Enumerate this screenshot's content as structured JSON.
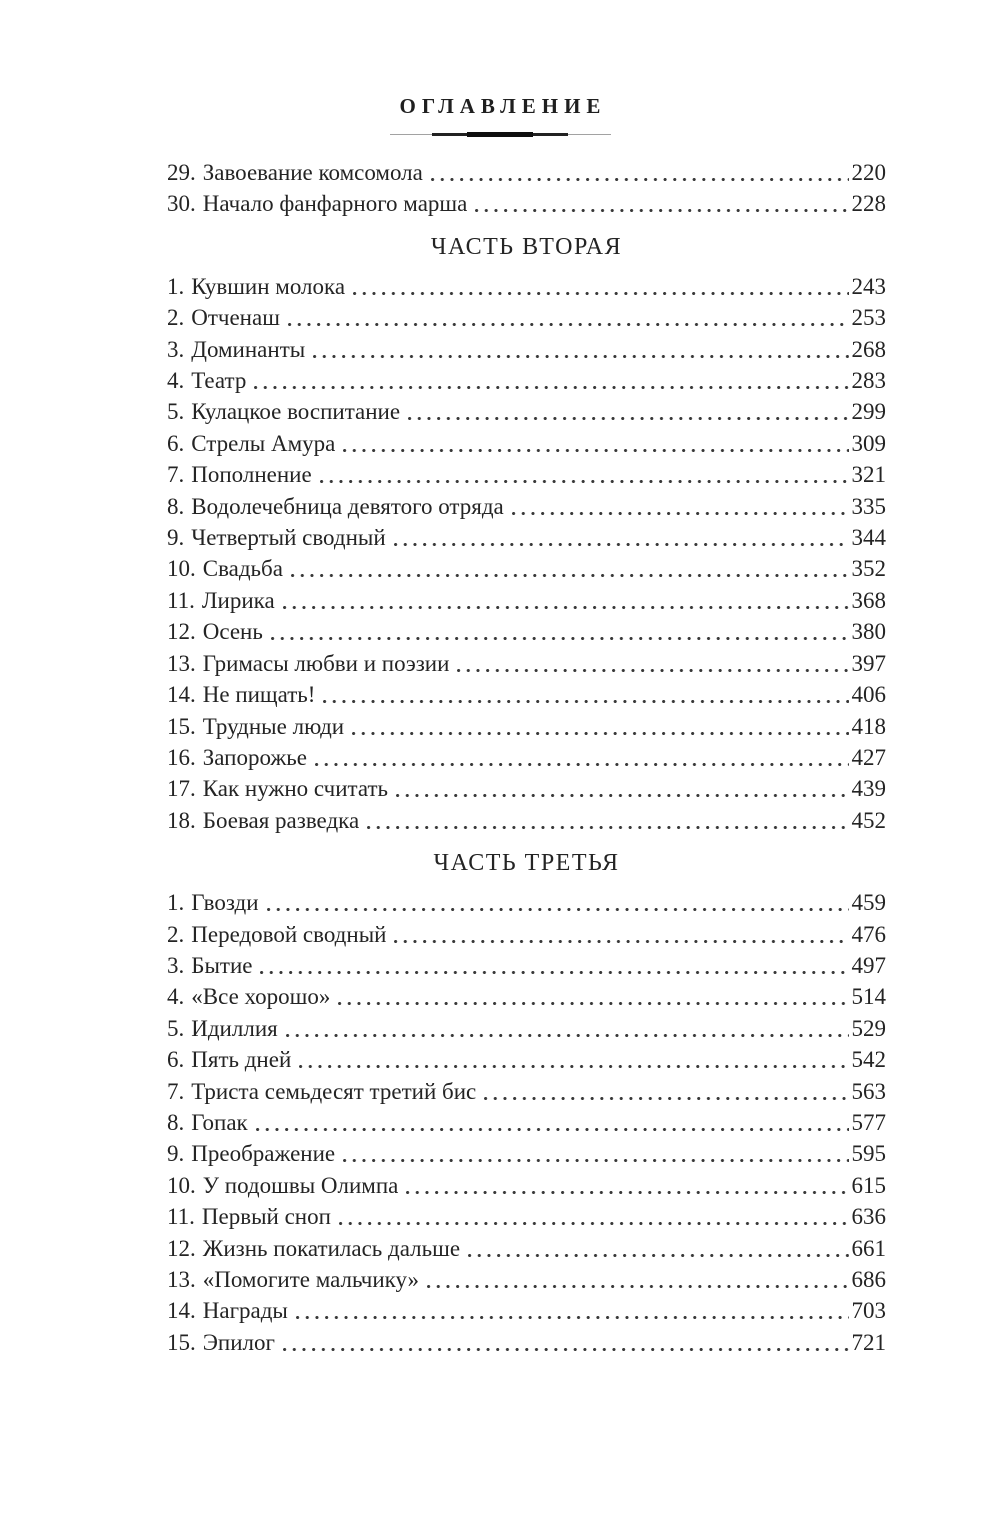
{
  "page": {
    "title": "ОГЛАВЛЕНИЕ"
  },
  "sections": [
    {
      "heading": null,
      "items": [
        {
          "num": "29.",
          "title": "Завоевание комсомола",
          "page": "220"
        },
        {
          "num": "30.",
          "title": "Начало фанфарного марша",
          "page": "228"
        }
      ]
    },
    {
      "heading": "ЧАСТЬ ВТОРАЯ",
      "items": [
        {
          "num": "1.",
          "title": "Кувшин молока",
          "page": "243"
        },
        {
          "num": "2.",
          "title": "Отченаш",
          "page": "253"
        },
        {
          "num": "3.",
          "title": "Доминанты",
          "page": "268"
        },
        {
          "num": "4.",
          "title": "Театр",
          "page": "283"
        },
        {
          "num": "5.",
          "title": "Кулацкое воспитание",
          "page": "299"
        },
        {
          "num": "6.",
          "title": "Стрелы Амура",
          "page": "309"
        },
        {
          "num": "7.",
          "title": "Пополнение",
          "page": "321"
        },
        {
          "num": "8.",
          "title": "Водолечебница девятого отряда",
          "page": "335"
        },
        {
          "num": "9.",
          "title": "Четвертый сводный",
          "page": "344"
        },
        {
          "num": "10.",
          "title": "Свадьба",
          "page": "352"
        },
        {
          "num": "11.",
          "title": "Лирика",
          "page": "368"
        },
        {
          "num": "12.",
          "title": "Осень",
          "page": "380"
        },
        {
          "num": "13.",
          "title": "Гримасы любви и поэзии",
          "page": "397"
        },
        {
          "num": "14.",
          "title": "Не пищать!",
          "page": "406"
        },
        {
          "num": "15.",
          "title": "Трудные люди",
          "page": "418"
        },
        {
          "num": "16.",
          "title": "Запорожье",
          "page": "427"
        },
        {
          "num": "17.",
          "title": "Как нужно считать",
          "page": "439"
        },
        {
          "num": "18.",
          "title": "Боевая разведка",
          "page": "452"
        }
      ]
    },
    {
      "heading": "ЧАСТЬ ТРЕТЬЯ",
      "items": [
        {
          "num": "1.",
          "title": "Гвозди",
          "page": "459"
        },
        {
          "num": "2.",
          "title": "Передовой сводный",
          "page": "476"
        },
        {
          "num": "3.",
          "title": "Бытие",
          "page": "497"
        },
        {
          "num": "4.",
          "title": "«Все хорошо»",
          "page": "514"
        },
        {
          "num": "5.",
          "title": "Идиллия",
          "page": "529"
        },
        {
          "num": "6.",
          "title": "Пять дней",
          "page": "542"
        },
        {
          "num": "7.",
          "title": "Триста семьдесят третий бис",
          "page": "563"
        },
        {
          "num": "8.",
          "title": "Гопак",
          "page": "577"
        },
        {
          "num": "9.",
          "title": "Преображение",
          "page": "595"
        },
        {
          "num": "10.",
          "title": "У подошвы Олимпа",
          "page": "615"
        },
        {
          "num": "11.",
          "title": "Первый сноп",
          "page": "636"
        },
        {
          "num": "12.",
          "title": "Жизнь покатилась дальше",
          "page": "661"
        },
        {
          "num": "13.",
          "title": "«Помогите мальчику»",
          "page": "686"
        },
        {
          "num": "14.",
          "title": "Награды",
          "page": "703"
        },
        {
          "num": "15.",
          "title": "Эпилог",
          "page": "721"
        }
      ]
    }
  ]
}
